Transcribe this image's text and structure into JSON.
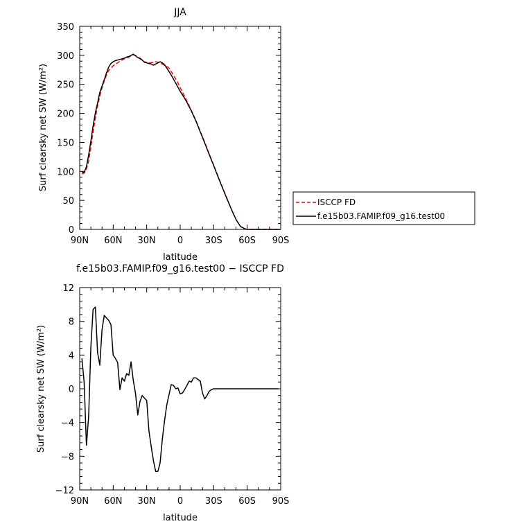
{
  "chart_data": [
    {
      "type": "line",
      "title": "JJA",
      "xlabel": "latitude",
      "ylabel": "Surf clearsky net SW (W/m²)",
      "xlim": [
        90,
        -90
      ],
      "ylim": [
        0,
        350
      ],
      "xticks": [
        90,
        60,
        30,
        0,
        -30,
        -60,
        -90
      ],
      "xtick_labels": [
        "90N",
        "60N",
        "30N",
        "0",
        "30S",
        "60S",
        "90S"
      ],
      "yticks": [
        0,
        50,
        100,
        150,
        200,
        250,
        300,
        350
      ],
      "ytick_labels": [
        "0",
        "50",
        "100",
        "150",
        "200",
        "250",
        "300",
        "350"
      ],
      "legend_position": "right",
      "series": [
        {
          "name": "ISCCP FD",
          "color": "#ff0000",
          "style": "dashed",
          "x": [
            88,
            86,
            84,
            82,
            80,
            78,
            76,
            74,
            72,
            70,
            68,
            66,
            64,
            62,
            60,
            58,
            56,
            54,
            52,
            50,
            48,
            46,
            44,
            42,
            40,
            38,
            36,
            34,
            32,
            30,
            28,
            26,
            24,
            22,
            20,
            18,
            16,
            14,
            12,
            10,
            8,
            6,
            4,
            2,
            0,
            -2,
            -4,
            -6,
            -10,
            -14,
            -18,
            -22,
            -26,
            -30,
            -34,
            -38,
            -42,
            -46,
            -50,
            -54,
            -58,
            -60,
            -62,
            -64,
            -66,
            -68,
            -70,
            -74,
            -78,
            -82,
            -86,
            -90
          ],
          "values": [
            96,
            97,
            104,
            118,
            142,
            168,
            192,
            213,
            230,
            244,
            256,
            266,
            274,
            278,
            282,
            285,
            287,
            290,
            292,
            294,
            295,
            297,
            299,
            301,
            300,
            297,
            294,
            291,
            289,
            288,
            287,
            287,
            288,
            289,
            288,
            287,
            285,
            283,
            281,
            278,
            272,
            266,
            259,
            252,
            244,
            237,
            229,
            221,
            205,
            188,
            169,
            150,
            130,
            111,
            91,
            72,
            53,
            34,
            17,
            5,
            1,
            0,
            0,
            0,
            0,
            0,
            0,
            0,
            0,
            0,
            0,
            0
          ]
        },
        {
          "name": "f.e15b03.FAMIP.f09_g16.test00",
          "color": "#000000",
          "style": "solid",
          "x": [
            88,
            86,
            84,
            82,
            80,
            78,
            76,
            74,
            72,
            70,
            68,
            66,
            64,
            62,
            60,
            58,
            56,
            54,
            52,
            50,
            48,
            46,
            44,
            42,
            40,
            38,
            36,
            34,
            32,
            30,
            28,
            26,
            24,
            22,
            20,
            18,
            16,
            14,
            12,
            10,
            8,
            6,
            4,
            2,
            0,
            -2,
            -4,
            -6,
            -10,
            -14,
            -18,
            -22,
            -26,
            -30,
            -34,
            -38,
            -42,
            -46,
            -50,
            -54,
            -58,
            -60,
            -62,
            -64,
            -66,
            -68,
            -70,
            -74,
            -78,
            -82,
            -86,
            -90
          ],
          "values": [
            99,
            98,
            108,
            128,
            152,
            178,
            201,
            218,
            236,
            247,
            258,
            270,
            280,
            286,
            289,
            291,
            292,
            293,
            294,
            295,
            297,
            298,
            300,
            302,
            299,
            296,
            295,
            292,
            288,
            287,
            286,
            285,
            283,
            285,
            287,
            289,
            287,
            284,
            278,
            272,
            266,
            259,
            252,
            245,
            238,
            232,
            226,
            219,
            204,
            187,
            168,
            149,
            129,
            110,
            90,
            71,
            52,
            34,
            17,
            5,
            1,
            0,
            0,
            0,
            0,
            0,
            0,
            0,
            0,
            0,
            0,
            0
          ]
        }
      ]
    },
    {
      "type": "line",
      "title": "f.e15b03.FAMIP.f09_g16.test00 − ISCCP FD",
      "xlabel": "latitude",
      "ylabel": "Surf clearsky net SW (W/m²)",
      "xlim": [
        90,
        -90
      ],
      "ylim": [
        -12,
        12
      ],
      "xticks": [
        90,
        60,
        30,
        0,
        -30,
        -60,
        -90
      ],
      "xtick_labels": [
        "90N",
        "60N",
        "30N",
        "0",
        "30S",
        "60S",
        "90S"
      ],
      "yticks": [
        -12,
        -8,
        -4,
        0,
        4,
        8,
        12
      ],
      "ytick_labels": [
        "−12",
        "−8",
        "−4",
        "0",
        "4",
        "8",
        "12"
      ],
      "series": [
        {
          "name": "",
          "color": "#000000",
          "style": "solid",
          "x": [
            88,
            86,
            84,
            82,
            80,
            78,
            76,
            74,
            72,
            70,
            68,
            66,
            64,
            62,
            60,
            58,
            56,
            54,
            52,
            50,
            48,
            46,
            44,
            42,
            40,
            38,
            36,
            34,
            32,
            30,
            28,
            26,
            24,
            22,
            20,
            18,
            16,
            14,
            12,
            10,
            8,
            6,
            4,
            2,
            0,
            -2,
            -4,
            -6,
            -8,
            -10,
            -12,
            -14,
            -16,
            -18,
            -20,
            -22,
            -24,
            -26,
            -28,
            -30,
            -32,
            -34,
            -36,
            -38,
            -40,
            -42,
            -44,
            -46,
            -48,
            -50,
            -52,
            -54,
            -56,
            -58,
            -60,
            -62,
            -64,
            -66,
            -68,
            -70,
            -72,
            -74,
            -76,
            -78,
            -80,
            -82,
            -84,
            -86,
            -88
          ],
          "values": [
            3.6,
            0.8,
            -6.7,
            -3.3,
            4.9,
            9.4,
            9.7,
            4.3,
            2.8,
            7.0,
            8.7,
            8.4,
            8.1,
            7.6,
            4.0,
            3.6,
            3.1,
            -0.1,
            1.3,
            0.9,
            1.8,
            1.6,
            3.2,
            1.0,
            -0.6,
            -3.1,
            -1.5,
            -0.8,
            -1.1,
            -1.4,
            -5.0,
            -6.8,
            -8.5,
            -9.8,
            -9.8,
            -8.8,
            -6.0,
            -3.8,
            -1.9,
            -0.7,
            0.5,
            0.4,
            0.0,
            0.1,
            -0.6,
            -0.5,
            -0.1,
            0.4,
            0.9,
            0.8,
            1.3,
            1.3,
            1.1,
            0.9,
            -0.5,
            -1.2,
            -0.8,
            -0.3,
            -0.1,
            0.0,
            0.0,
            0.0,
            0.0,
            0.0,
            0.0,
            0.0,
            0.0,
            0.0,
            0.0,
            0.0,
            0.0,
            0.0,
            0.0,
            0.0,
            0.0,
            0.0,
            0.0,
            0.0,
            0.0,
            0.0,
            0.0,
            0.0,
            0.0,
            0.0,
            0.0,
            0.0,
            0.0,
            0.0,
            0.0
          ]
        }
      ]
    }
  ]
}
